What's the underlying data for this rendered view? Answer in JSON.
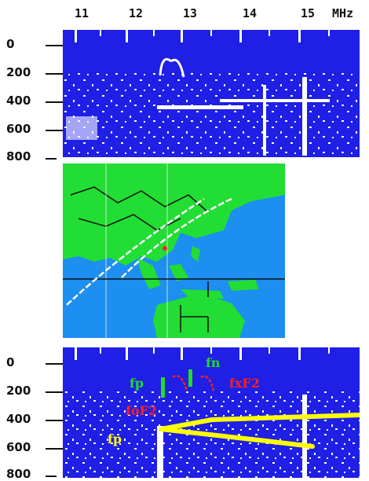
{
  "frequency_axis": {
    "unit": "MHz",
    "ticks": [
      "11",
      "12",
      "13",
      "14",
      "15"
    ]
  },
  "top_ionogram": {
    "height_ticks": [
      "0",
      "200",
      "400",
      "600",
      "800"
    ]
  },
  "bottom_ionogram": {
    "height_ticks": [
      "0",
      "200",
      "400",
      "600",
      "800"
    ],
    "annotations": {
      "fp_upper": "fp",
      "fn": "fn",
      "fxF2": "fxF2",
      "foF2": "foF2",
      "fp_lower": "fp"
    },
    "colors": {
      "background": "#1f1fe6",
      "fp_upper": "#22dd22",
      "fn": "#22dd22",
      "fxF2": "#ff2020",
      "foF2": "#ff2020",
      "fp_lower": "#ffff00"
    }
  },
  "map": {
    "colors": {
      "ocean": "#1c8ff0",
      "land": "#22dd33",
      "track": "#ffffff",
      "marker": "#ff2020"
    }
  }
}
